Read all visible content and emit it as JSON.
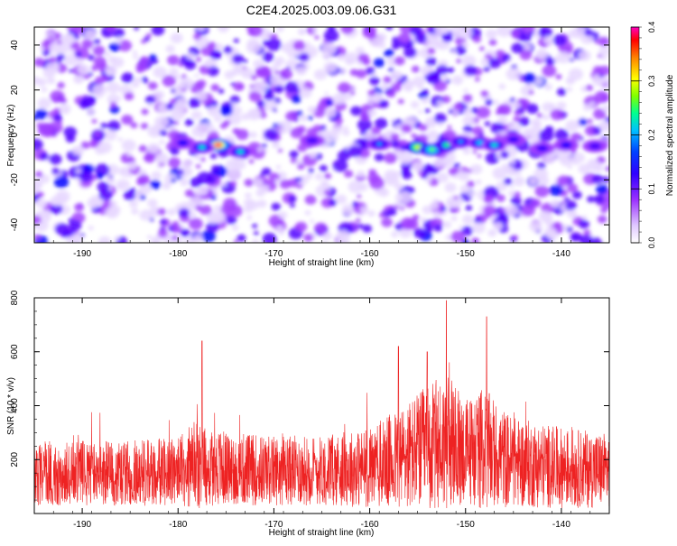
{
  "title": "C2E4.2025.003.09.06.G31",
  "chart_data": [
    {
      "type": "heatmap",
      "xlabel": "Height of straight line (km)",
      "ylabel": "Frequency (Hz)",
      "xlim": [
        -195,
        -135
      ],
      "ylim": [
        -48,
        48
      ],
      "xticks": [
        -190,
        -180,
        -170,
        -160,
        -150,
        -140
      ],
      "yticks": [
        -40,
        -20,
        0,
        20,
        40
      ],
      "colorbar": {
        "label": "Normalized spectral amplitude",
        "range": [
          0,
          0.4
        ],
        "ticks": [
          "0.0",
          "0.1",
          "0.2",
          "0.3",
          "0.4"
        ],
        "colors": [
          "#ffffff",
          "#e8d8ff",
          "#a040ff",
          "#5000ff",
          "#0000ff",
          "#00c8ff",
          "#00ff80",
          "#80ff00",
          "#ffff00",
          "#ff8000",
          "#ff0000",
          "#ff00c0"
        ]
      },
      "hotspots": [
        {
          "x": -175.8,
          "y": -4.5,
          "amp": 0.4
        },
        {
          "x": -177.5,
          "y": -5.5,
          "amp": 0.22
        },
        {
          "x": -179.5,
          "y": -3.5,
          "amp": 0.16
        },
        {
          "x": -173.5,
          "y": -7.5,
          "amp": 0.22
        },
        {
          "x": -166.0,
          "y": -2.5,
          "amp": 0.12
        },
        {
          "x": -159.0,
          "y": -4.0,
          "amp": 0.18
        },
        {
          "x": -155.0,
          "y": -5.5,
          "amp": 0.3
        },
        {
          "x": -153.5,
          "y": -6.5,
          "amp": 0.26
        },
        {
          "x": -152.0,
          "y": -4.5,
          "amp": 0.24
        },
        {
          "x": -150.5,
          "y": -3.0,
          "amp": 0.18
        },
        {
          "x": -148.5,
          "y": -3.5,
          "amp": 0.2
        },
        {
          "x": -147.0,
          "y": -4.5,
          "amp": 0.22
        },
        {
          "x": -145.0,
          "y": -2.0,
          "amp": 0.14
        },
        {
          "x": -142.0,
          "y": -6.0,
          "amp": 0.14
        },
        {
          "x": -139.5,
          "y": -4.5,
          "amp": 0.16
        },
        {
          "x": -136.5,
          "y": -5.0,
          "amp": 0.12
        }
      ]
    },
    {
      "type": "line",
      "xlabel": "Height of straight line (km)",
      "ylabel": "SNR (10 * v/v)",
      "xlim": [
        -195,
        -135
      ],
      "ylim": [
        0,
        800
      ],
      "xticks": [
        -190,
        -180,
        -170,
        -160,
        -150,
        -140
      ],
      "yticks": [
        200,
        400,
        600,
        800
      ],
      "line_color": "#ee2222",
      "envelope": {
        "x": [
          -195,
          -190,
          -185,
          -180,
          -178,
          -177,
          -175,
          -170,
          -165,
          -160,
          -157,
          -155,
          -153,
          -152,
          -150,
          -148,
          -147,
          -145,
          -140,
          -135
        ],
        "base": [
          150,
          150,
          150,
          155,
          180,
          175,
          165,
          160,
          160,
          170,
          200,
          230,
          250,
          260,
          230,
          240,
          220,
          190,
          170,
          160
        ],
        "spread": [
          120,
          120,
          120,
          130,
          170,
          160,
          140,
          130,
          130,
          150,
          190,
          220,
          250,
          260,
          200,
          230,
          200,
          170,
          150,
          140
        ]
      },
      "peaks": [
        {
          "x": -177.5,
          "y": 640
        },
        {
          "x": -157.0,
          "y": 620
        },
        {
          "x": -152.0,
          "y": 790
        },
        {
          "x": -147.8,
          "y": 730
        },
        {
          "x": -154.0,
          "y": 600
        }
      ]
    }
  ]
}
